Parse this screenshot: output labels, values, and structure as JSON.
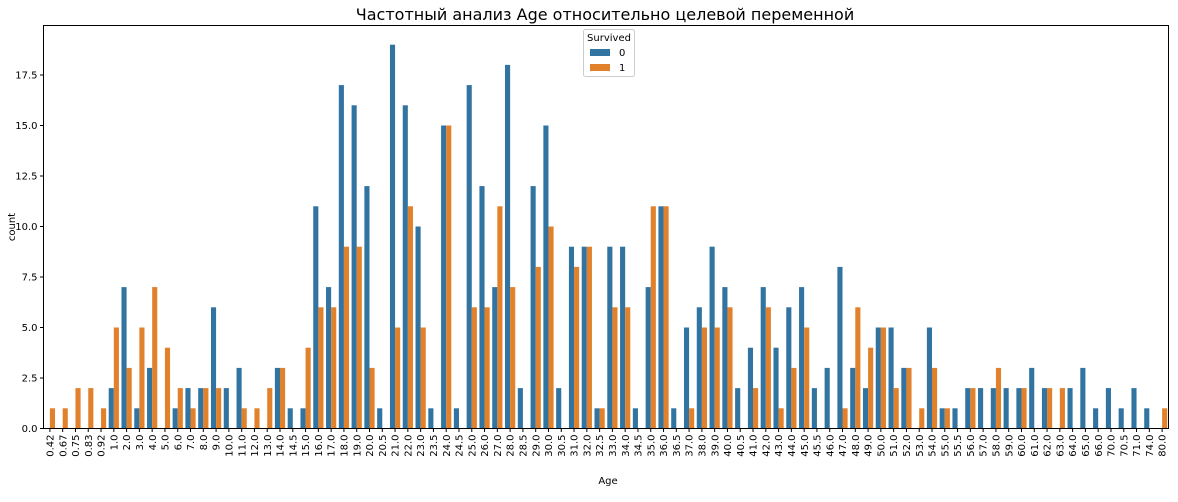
{
  "chart_data": {
    "type": "bar",
    "title": "Частотный анализ Age относительно целевой переменной",
    "xlabel": "Age",
    "ylabel": "count",
    "ylim": [
      0,
      19.95
    ],
    "yticks": [
      "0.0",
      "2.5",
      "5.0",
      "7.5",
      "10.0",
      "12.5",
      "15.0",
      "17.5"
    ],
    "grid": false,
    "legend": {
      "title": "Survived",
      "placement": "top-center"
    },
    "categories": [
      "0.42",
      "0.67",
      "0.75",
      "0.83",
      "0.92",
      "1.0",
      "2.0",
      "3.0",
      "4.0",
      "5.0",
      "6.0",
      "7.0",
      "8.0",
      "9.0",
      "10.0",
      "11.0",
      "12.0",
      "13.0",
      "14.0",
      "14.5",
      "15.0",
      "16.0",
      "17.0",
      "18.0",
      "19.0",
      "20.0",
      "20.5",
      "21.0",
      "22.0",
      "23.0",
      "23.5",
      "24.0",
      "24.5",
      "25.0",
      "26.0",
      "27.0",
      "28.0",
      "28.5",
      "29.0",
      "30.0",
      "30.5",
      "31.0",
      "32.0",
      "32.5",
      "33.0",
      "34.0",
      "34.5",
      "35.0",
      "36.0",
      "36.5",
      "37.0",
      "38.0",
      "39.0",
      "40.0",
      "40.5",
      "41.0",
      "42.0",
      "43.0",
      "44.0",
      "45.0",
      "45.5",
      "46.0",
      "47.0",
      "48.0",
      "49.0",
      "50.0",
      "51.0",
      "52.0",
      "53.0",
      "54.0",
      "55.0",
      "55.5",
      "56.0",
      "57.0",
      "58.0",
      "59.0",
      "60.0",
      "61.0",
      "62.0",
      "63.0",
      "64.0",
      "65.0",
      "66.0",
      "70.0",
      "70.5",
      "71.0",
      "74.0",
      "80.0"
    ],
    "series": [
      {
        "name": "0",
        "color": "#3274a1",
        "values": [
          0,
          0,
          0,
          0,
          0,
          2,
          7,
          1,
          3,
          0,
          1,
          2,
          2,
          6,
          2,
          3,
          0,
          0,
          3,
          1,
          1,
          11,
          7,
          17,
          16,
          12,
          1,
          19,
          16,
          10,
          1,
          15,
          1,
          17,
          12,
          7,
          18,
          2,
          12,
          15,
          2,
          9,
          9,
          1,
          9,
          9,
          1,
          7,
          11,
          1,
          5,
          6,
          9,
          7,
          2,
          4,
          7,
          4,
          6,
          7,
          2,
          3,
          8,
          3,
          2,
          5,
          5,
          3,
          0,
          5,
          1,
          1,
          2,
          2,
          2,
          2,
          2,
          3,
          2,
          0,
          2,
          3,
          1,
          2,
          1,
          2,
          1,
          0
        ]
      },
      {
        "name": "1",
        "color": "#e1812c",
        "values": [
          1,
          1,
          2,
          2,
          1,
          5,
          3,
          5,
          7,
          4,
          2,
          1,
          2,
          2,
          0,
          1,
          1,
          2,
          3,
          0,
          4,
          6,
          6,
          9,
          9,
          3,
          0,
          5,
          11,
          5,
          0,
          15,
          0,
          6,
          6,
          11,
          7,
          0,
          8,
          10,
          0,
          8,
          9,
          1,
          6,
          6,
          0,
          11,
          11,
          0,
          1,
          5,
          5,
          6,
          0,
          2,
          6,
          1,
          3,
          5,
          0,
          0,
          1,
          6,
          4,
          5,
          2,
          3,
          1,
          3,
          1,
          0,
          2,
          0,
          3,
          0,
          2,
          0,
          2,
          2,
          0,
          0,
          0,
          0,
          0,
          0,
          0,
          1
        ]
      }
    ]
  }
}
